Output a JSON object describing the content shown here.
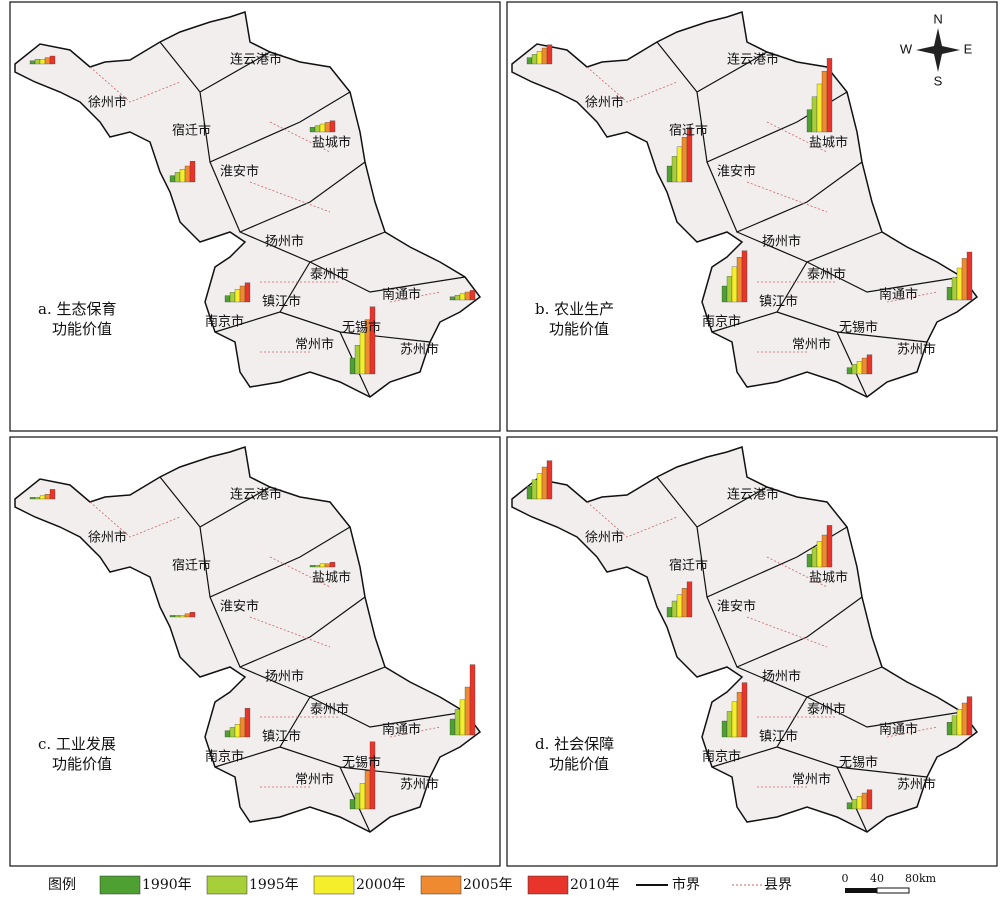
{
  "panels": [
    {
      "caption": [
        "a. 生态保育",
        "功能价值"
      ],
      "cities": [
        "连云港市",
        "徐州市",
        "宿迁市",
        "盐城市",
        "淮安市",
        "扬州市",
        "泰州市",
        "南通市",
        "镇江市",
        "南京市",
        "无锡市",
        "常州市",
        "苏州市"
      ],
      "bars": [
        [
          2,
          3,
          3,
          4,
          5
        ],
        [
          4,
          6,
          8,
          10,
          13
        ],
        [
          3,
          4,
          5,
          6,
          7
        ],
        [
          4,
          6,
          8,
          10,
          12
        ],
        [
          10,
          18,
          26,
          34,
          42
        ],
        [
          2,
          3,
          4,
          5,
          6
        ]
      ]
    },
    {
      "caption": [
        "b. 农业生产",
        "功能价值"
      ],
      "cities": [
        "连云港市",
        "徐州市",
        "宿迁市",
        "盐城市",
        "淮安市",
        "扬州市",
        "泰州市",
        "南通市",
        "镇江市",
        "南京市",
        "无锡市",
        "常州市",
        "苏州市"
      ],
      "bars": [
        [
          4,
          6,
          8,
          10,
          12
        ],
        [
          10,
          16,
          22,
          28,
          34
        ],
        [
          14,
          22,
          30,
          38,
          46
        ],
        [
          10,
          16,
          22,
          28,
          32
        ],
        [
          4,
          6,
          8,
          10,
          12
        ],
        [
          8,
          14,
          20,
          26,
          30
        ]
      ]
    },
    {
      "caption": [
        "c. 工业发展",
        "功能价值"
      ],
      "cities": [
        "连云港市",
        "徐州市",
        "宿迁市",
        "盐城市",
        "淮安市",
        "扬州市",
        "泰州市",
        "南通市",
        "镇江市",
        "南京市",
        "无锡市",
        "常州市",
        "苏州市"
      ],
      "bars": [
        [
          1,
          1,
          2,
          3,
          6
        ],
        [
          1,
          1,
          1,
          2,
          3
        ],
        [
          1,
          1,
          2,
          2,
          3
        ],
        [
          4,
          6,
          8,
          12,
          18
        ],
        [
          6,
          10,
          16,
          24,
          42
        ],
        [
          10,
          16,
          22,
          30,
          44
        ]
      ]
    },
    {
      "caption": [
        "d. 社会保障",
        "功能价值"
      ],
      "cities": [
        "连云港市",
        "徐州市",
        "宿迁市",
        "盐城市",
        "淮安市",
        "扬州市",
        "泰州市",
        "南通市",
        "镇江市",
        "南京市",
        "无锡市",
        "常州市",
        "苏州市"
      ],
      "bars": [
        [
          8,
          12,
          16,
          20,
          24
        ],
        [
          6,
          10,
          14,
          18,
          22
        ],
        [
          8,
          12,
          16,
          20,
          26
        ],
        [
          10,
          16,
          22,
          28,
          34
        ],
        [
          4,
          6,
          8,
          10,
          12
        ],
        [
          8,
          12,
          16,
          20,
          24
        ]
      ]
    }
  ],
  "legend": {
    "title": "图例",
    "items": [
      {
        "label": "1990年",
        "color": "#4ea032"
      },
      {
        "label": "1995年",
        "color": "#a6cf3a"
      },
      {
        "label": "2000年",
        "color": "#f5ee2a"
      },
      {
        "label": "2005年",
        "color": "#f08a30"
      },
      {
        "label": "2010年",
        "color": "#e8342a"
      }
    ],
    "city_border": "市界",
    "county_border": "县界"
  },
  "scale": [
    "0",
    "40",
    "80km"
  ],
  "compass": [
    "N",
    "S",
    "W",
    "E"
  ]
}
